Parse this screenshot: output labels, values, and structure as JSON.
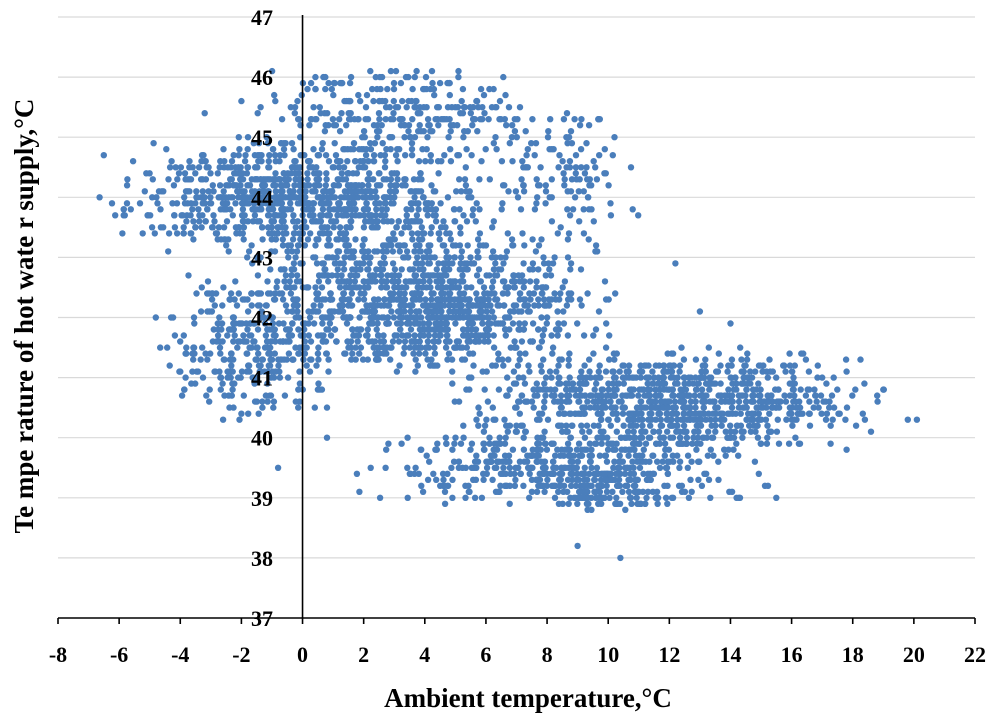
{
  "chart_data": {
    "type": "scatter",
    "title": "",
    "xlabel": "Ambient temperature,°C",
    "ylabel": "Te mpe rature of hot wate r supply,°C",
    "xlim": [
      -8,
      22
    ],
    "ylim": [
      37,
      47
    ],
    "x_ticks": [
      -8,
      -6,
      -4,
      -2,
      0,
      2,
      4,
      6,
      8,
      10,
      12,
      14,
      16,
      18,
      20,
      22
    ],
    "y_ticks": [
      37,
      38,
      39,
      40,
      41,
      42,
      43,
      44,
      45,
      46,
      47
    ],
    "grid": "horizontal",
    "legend": "none",
    "marker_color": "#4a7ebb",
    "clusters": [
      {
        "x_range": [
          -6.5,
          6.5
        ],
        "y_range": [
          43.2,
          44.8
        ],
        "count": 950
      },
      {
        "x_range": [
          -2.0,
          10.0
        ],
        "y_range": [
          41.3,
          43.2
        ],
        "count": 1100
      },
      {
        "x_range": [
          -4.8,
          1.5
        ],
        "y_range": [
          40.5,
          42.6
        ],
        "count": 300
      },
      {
        "x_range": [
          5.0,
          19.0
        ],
        "y_range": [
          40.0,
          41.3
        ],
        "count": 900
      },
      {
        "x_range": [
          2.0,
          15.5
        ],
        "y_range": [
          39.0,
          40.1
        ],
        "count": 450
      },
      {
        "x_range": [
          -1.5,
          8.5
        ],
        "y_range": [
          44.8,
          46.0
        ],
        "count": 250
      },
      {
        "x_range": [
          6.0,
          11.0
        ],
        "y_range": [
          43.3,
          45.3
        ],
        "count": 120
      },
      {
        "x_range": [
          7.5,
          12.5
        ],
        "y_range": [
          38.8,
          39.5
        ],
        "count": 130
      }
    ],
    "points": [
      [
        -6.5,
        44.7
      ],
      [
        -3.2,
        45.4
      ],
      [
        -2.0,
        45.6
      ],
      [
        1.2,
        45.3
      ],
      [
        5.1,
        46.0
      ],
      [
        3.6,
        45.8
      ],
      [
        4.5,
        45.9
      ],
      [
        8.9,
        45.3
      ],
      [
        9.2,
        43.8
      ],
      [
        10.8,
        43.8
      ],
      [
        12.2,
        42.9
      ],
      [
        13.0,
        42.1
      ],
      [
        14.0,
        41.9
      ],
      [
        17.8,
        41.1
      ],
      [
        19.0,
        40.8
      ],
      [
        18.8,
        40.7
      ],
      [
        19.8,
        40.3
      ],
      [
        20.1,
        40.3
      ],
      [
        15.5,
        39.0
      ],
      [
        14.2,
        39.0
      ],
      [
        17.8,
        39.8
      ],
      [
        10.4,
        38.0
      ],
      [
        9.0,
        38.2
      ],
      [
        -0.8,
        39.5
      ],
      [
        0.8,
        40.0
      ],
      [
        -4.8,
        42.0
      ],
      [
        -4.0,
        41.1
      ],
      [
        -2.0,
        40.4
      ],
      [
        0.8,
        40.5
      ],
      [
        0.4,
        40.5
      ]
    ]
  }
}
